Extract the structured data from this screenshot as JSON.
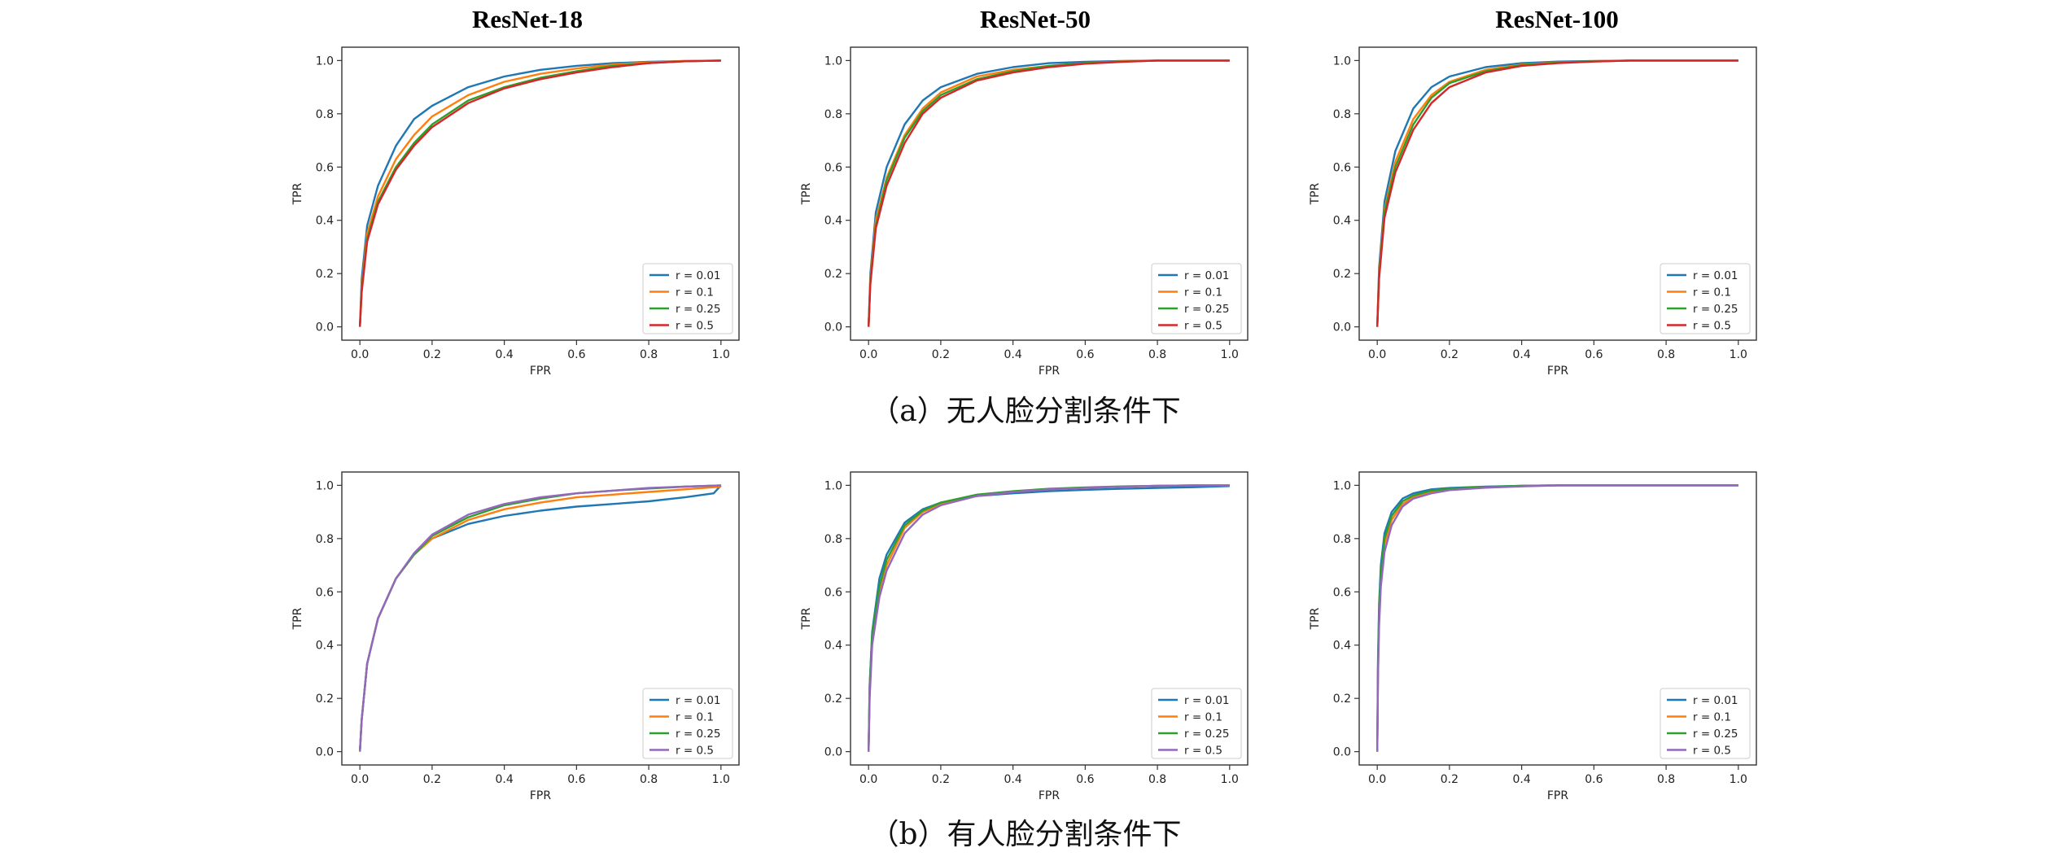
{
  "column_titles": [
    "ResNet-18",
    "ResNet-50",
    "ResNet-100"
  ],
  "captions": [
    "（a）无人脸分割条件下",
    "（b）有人脸分割条件下"
  ],
  "colors": {
    "a": [
      "#1f77b4",
      "#ff7f0e",
      "#2ca02c",
      "#d62728"
    ],
    "b": [
      "#1f77b4",
      "#ff7f0e",
      "#2ca02c",
      "#9467bd"
    ]
  },
  "chart_data": [
    {
      "type": "line",
      "panel": "a-resnet18",
      "xlabel": "FPR",
      "ylabel": "TPR",
      "xlim": [
        0,
        1
      ],
      "ylim": [
        0,
        1
      ],
      "xticks": [
        "0.0",
        "0.2",
        "0.4",
        "0.6",
        "0.8",
        "1.0"
      ],
      "yticks": [
        "0.0",
        "0.2",
        "0.4",
        "0.6",
        "0.8",
        "1.0"
      ],
      "legend_position": "lower right",
      "series": [
        {
          "name": "r = 0.01",
          "x": [
            0,
            0.005,
            0.02,
            0.05,
            0.1,
            0.15,
            0.2,
            0.3,
            0.4,
            0.5,
            0.6,
            0.7,
            0.8,
            0.9,
            1.0
          ],
          "y": [
            0,
            0.18,
            0.38,
            0.53,
            0.68,
            0.78,
            0.83,
            0.9,
            0.94,
            0.965,
            0.98,
            0.99,
            0.995,
            0.998,
            1.0
          ]
        },
        {
          "name": "r = 0.1",
          "x": [
            0,
            0.005,
            0.02,
            0.05,
            0.1,
            0.15,
            0.2,
            0.3,
            0.4,
            0.5,
            0.6,
            0.7,
            0.8,
            0.9,
            1.0
          ],
          "y": [
            0,
            0.15,
            0.35,
            0.49,
            0.63,
            0.72,
            0.79,
            0.87,
            0.92,
            0.95,
            0.97,
            0.985,
            0.993,
            0.998,
            1.0
          ]
        },
        {
          "name": "r = 0.25",
          "x": [
            0,
            0.005,
            0.02,
            0.05,
            0.1,
            0.15,
            0.2,
            0.3,
            0.4,
            0.5,
            0.6,
            0.7,
            0.8,
            0.9,
            1.0
          ],
          "y": [
            0,
            0.14,
            0.33,
            0.47,
            0.6,
            0.69,
            0.76,
            0.85,
            0.9,
            0.935,
            0.96,
            0.98,
            0.99,
            0.997,
            1.0
          ]
        },
        {
          "name": "r = 0.5",
          "x": [
            0,
            0.005,
            0.02,
            0.05,
            0.1,
            0.15,
            0.2,
            0.3,
            0.4,
            0.5,
            0.6,
            0.7,
            0.8,
            0.9,
            1.0
          ],
          "y": [
            0,
            0.13,
            0.32,
            0.46,
            0.59,
            0.68,
            0.75,
            0.84,
            0.895,
            0.93,
            0.955,
            0.975,
            0.99,
            0.997,
            1.0
          ]
        }
      ]
    },
    {
      "type": "line",
      "panel": "a-resnet50",
      "xlabel": "FPR",
      "ylabel": "TPR",
      "xlim": [
        0,
        1
      ],
      "ylim": [
        0,
        1
      ],
      "xticks": [
        "0.0",
        "0.2",
        "0.4",
        "0.6",
        "0.8",
        "1.0"
      ],
      "yticks": [
        "0.0",
        "0.2",
        "0.4",
        "0.6",
        "0.8",
        "1.0"
      ],
      "legend_position": "lower right",
      "series": [
        {
          "name": "r = 0.01",
          "x": [
            0,
            0.005,
            0.02,
            0.05,
            0.1,
            0.15,
            0.2,
            0.3,
            0.4,
            0.5,
            0.6,
            0.7,
            0.8,
            0.9,
            1.0
          ],
          "y": [
            0,
            0.2,
            0.43,
            0.6,
            0.76,
            0.85,
            0.9,
            0.95,
            0.975,
            0.99,
            0.995,
            0.998,
            1.0,
            1.0,
            1.0
          ]
        },
        {
          "name": "r = 0.1",
          "x": [
            0,
            0.005,
            0.02,
            0.05,
            0.1,
            0.15,
            0.2,
            0.3,
            0.4,
            0.5,
            0.6,
            0.7,
            0.8,
            0.9,
            1.0
          ],
          "y": [
            0,
            0.18,
            0.4,
            0.56,
            0.72,
            0.82,
            0.88,
            0.94,
            0.965,
            0.98,
            0.99,
            0.997,
            1.0,
            1.0,
            1.0
          ]
        },
        {
          "name": "r = 0.25",
          "x": [
            0,
            0.005,
            0.02,
            0.05,
            0.1,
            0.15,
            0.2,
            0.3,
            0.4,
            0.5,
            0.6,
            0.7,
            0.8,
            0.9,
            1.0
          ],
          "y": [
            0,
            0.17,
            0.38,
            0.55,
            0.71,
            0.81,
            0.87,
            0.93,
            0.96,
            0.98,
            0.99,
            0.996,
            1.0,
            1.0,
            1.0
          ]
        },
        {
          "name": "r = 0.5",
          "x": [
            0,
            0.005,
            0.02,
            0.05,
            0.1,
            0.15,
            0.2,
            0.3,
            0.4,
            0.5,
            0.6,
            0.7,
            0.8,
            0.9,
            1.0
          ],
          "y": [
            0,
            0.16,
            0.37,
            0.53,
            0.69,
            0.8,
            0.86,
            0.925,
            0.955,
            0.975,
            0.988,
            0.995,
            1.0,
            1.0,
            1.0
          ]
        }
      ]
    },
    {
      "type": "line",
      "panel": "a-resnet100",
      "xlabel": "FPR",
      "ylabel": "TPR",
      "xlim": [
        0,
        1
      ],
      "ylim": [
        0,
        1
      ],
      "xticks": [
        "0.0",
        "0.2",
        "0.4",
        "0.6",
        "0.8",
        "1.0"
      ],
      "yticks": [
        "0.0",
        "0.2",
        "0.4",
        "0.6",
        "0.8",
        "1.0"
      ],
      "legend_position": "lower right",
      "series": [
        {
          "name": "r = 0.01",
          "x": [
            0,
            0.005,
            0.02,
            0.05,
            0.1,
            0.15,
            0.2,
            0.3,
            0.4,
            0.5,
            0.6,
            0.7,
            0.8,
            0.9,
            1.0
          ],
          "y": [
            0,
            0.22,
            0.47,
            0.66,
            0.82,
            0.9,
            0.94,
            0.975,
            0.99,
            0.996,
            0.998,
            1.0,
            1.0,
            1.0,
            1.0
          ]
        },
        {
          "name": "r = 0.1",
          "x": [
            0,
            0.005,
            0.02,
            0.05,
            0.1,
            0.15,
            0.2,
            0.3,
            0.4,
            0.5,
            0.6,
            0.7,
            0.8,
            0.9,
            1.0
          ],
          "y": [
            0,
            0.2,
            0.44,
            0.62,
            0.78,
            0.87,
            0.92,
            0.965,
            0.985,
            0.993,
            0.997,
            1.0,
            1.0,
            1.0,
            1.0
          ]
        },
        {
          "name": "r = 0.25",
          "x": [
            0,
            0.005,
            0.02,
            0.05,
            0.1,
            0.15,
            0.2,
            0.3,
            0.4,
            0.5,
            0.6,
            0.7,
            0.8,
            0.9,
            1.0
          ],
          "y": [
            0,
            0.19,
            0.43,
            0.6,
            0.76,
            0.86,
            0.915,
            0.96,
            0.983,
            0.992,
            0.997,
            1.0,
            1.0,
            1.0,
            1.0
          ]
        },
        {
          "name": "r = 0.5",
          "x": [
            0,
            0.005,
            0.02,
            0.05,
            0.1,
            0.15,
            0.2,
            0.3,
            0.4,
            0.5,
            0.6,
            0.7,
            0.8,
            0.9,
            1.0
          ],
          "y": [
            0,
            0.18,
            0.41,
            0.58,
            0.74,
            0.84,
            0.9,
            0.955,
            0.98,
            0.99,
            0.996,
            1.0,
            1.0,
            1.0,
            1.0
          ]
        }
      ]
    },
    {
      "type": "line",
      "panel": "b-resnet18",
      "xlabel": "FPR",
      "ylabel": "TPR",
      "xlim": [
        0,
        1
      ],
      "ylim": [
        0,
        1
      ],
      "xticks": [
        "0.0",
        "0.2",
        "0.4",
        "0.6",
        "0.8",
        "1.0"
      ],
      "yticks": [
        "0.0",
        "0.2",
        "0.4",
        "0.6",
        "0.8",
        "1.0"
      ],
      "legend_position": "lower right",
      "series": [
        {
          "name": "r = 0.01",
          "x": [
            0,
            0.005,
            0.02,
            0.05,
            0.1,
            0.15,
            0.2,
            0.3,
            0.4,
            0.5,
            0.6,
            0.7,
            0.8,
            0.9,
            0.98,
            1.0
          ],
          "y": [
            0,
            0.12,
            0.33,
            0.5,
            0.65,
            0.74,
            0.8,
            0.855,
            0.885,
            0.905,
            0.92,
            0.93,
            0.94,
            0.955,
            0.97,
            1.0
          ]
        },
        {
          "name": "r = 0.1",
          "x": [
            0,
            0.005,
            0.02,
            0.05,
            0.1,
            0.15,
            0.2,
            0.3,
            0.4,
            0.5,
            0.6,
            0.7,
            0.8,
            0.9,
            1.0
          ],
          "y": [
            0,
            0.12,
            0.33,
            0.5,
            0.65,
            0.74,
            0.8,
            0.87,
            0.91,
            0.935,
            0.955,
            0.965,
            0.975,
            0.985,
            0.995
          ]
        },
        {
          "name": "r = 0.25",
          "x": [
            0,
            0.005,
            0.02,
            0.05,
            0.1,
            0.15,
            0.2,
            0.3,
            0.4,
            0.5,
            0.6,
            0.7,
            0.8,
            0.9,
            1.0
          ],
          "y": [
            0,
            0.12,
            0.33,
            0.5,
            0.65,
            0.74,
            0.81,
            0.88,
            0.925,
            0.95,
            0.97,
            0.98,
            0.988,
            0.995,
            1.0
          ]
        },
        {
          "name": "r = 0.5",
          "x": [
            0,
            0.005,
            0.02,
            0.05,
            0.1,
            0.15,
            0.2,
            0.3,
            0.4,
            0.5,
            0.6,
            0.7,
            0.8,
            0.9,
            1.0
          ],
          "y": [
            0,
            0.12,
            0.33,
            0.5,
            0.65,
            0.745,
            0.815,
            0.89,
            0.93,
            0.955,
            0.97,
            0.98,
            0.99,
            0.995,
            1.0
          ]
        }
      ]
    },
    {
      "type": "line",
      "panel": "b-resnet50",
      "xlabel": "FPR",
      "ylabel": "TPR",
      "xlim": [
        0,
        1
      ],
      "ylim": [
        0,
        1
      ],
      "xticks": [
        "0.0",
        "0.2",
        "0.4",
        "0.6",
        "0.8",
        "1.0"
      ],
      "yticks": [
        "0.0",
        "0.2",
        "0.4",
        "0.6",
        "0.8",
        "1.0"
      ],
      "legend_position": "lower right",
      "series": [
        {
          "name": "r = 0.01",
          "x": [
            0,
            0.003,
            0.01,
            0.03,
            0.05,
            0.1,
            0.15,
            0.2,
            0.3,
            0.4,
            0.5,
            0.6,
            0.7,
            0.8,
            0.9,
            1.0
          ],
          "y": [
            0,
            0.25,
            0.45,
            0.65,
            0.74,
            0.86,
            0.91,
            0.935,
            0.96,
            0.97,
            0.978,
            0.983,
            0.987,
            0.99,
            0.993,
            0.997
          ]
        },
        {
          "name": "r = 0.1",
          "x": [
            0,
            0.003,
            0.01,
            0.03,
            0.05,
            0.1,
            0.15,
            0.2,
            0.3,
            0.4,
            0.5,
            0.6,
            0.7,
            0.8,
            0.9,
            1.0
          ],
          "y": [
            0,
            0.22,
            0.42,
            0.6,
            0.7,
            0.84,
            0.9,
            0.93,
            0.96,
            0.975,
            0.985,
            0.99,
            0.995,
            0.998,
            1.0,
            1.0
          ]
        },
        {
          "name": "r = 0.25",
          "x": [
            0,
            0.003,
            0.01,
            0.03,
            0.05,
            0.1,
            0.15,
            0.2,
            0.3,
            0.4,
            0.5,
            0.6,
            0.7,
            0.8,
            0.9,
            1.0
          ],
          "y": [
            0,
            0.24,
            0.44,
            0.62,
            0.72,
            0.85,
            0.905,
            0.935,
            0.965,
            0.978,
            0.987,
            0.992,
            0.996,
            0.998,
            1.0,
            1.0
          ]
        },
        {
          "name": "r = 0.5",
          "x": [
            0,
            0.003,
            0.01,
            0.03,
            0.05,
            0.1,
            0.15,
            0.2,
            0.3,
            0.4,
            0.5,
            0.6,
            0.7,
            0.8,
            0.9,
            1.0
          ],
          "y": [
            0,
            0.2,
            0.4,
            0.58,
            0.68,
            0.82,
            0.89,
            0.925,
            0.96,
            0.975,
            0.985,
            0.99,
            0.995,
            0.998,
            1.0,
            1.0
          ]
        }
      ]
    },
    {
      "type": "line",
      "panel": "b-resnet100",
      "xlabel": "FPR",
      "ylabel": "TPR",
      "xlim": [
        0,
        1
      ],
      "ylim": [
        0,
        1
      ],
      "xticks": [
        "0.0",
        "0.2",
        "0.4",
        "0.6",
        "0.8",
        "1.0"
      ],
      "yticks": [
        "0.0",
        "0.2",
        "0.4",
        "0.6",
        "0.8",
        "1.0"
      ],
      "legend_position": "lower right",
      "series": [
        {
          "name": "r = 0.01",
          "x": [
            0,
            0.002,
            0.005,
            0.01,
            0.02,
            0.04,
            0.07,
            0.1,
            0.15,
            0.2,
            0.3,
            0.4,
            0.5,
            0.6,
            0.8,
            1.0
          ],
          "y": [
            0,
            0.35,
            0.55,
            0.7,
            0.82,
            0.9,
            0.95,
            0.97,
            0.985,
            0.99,
            0.995,
            0.998,
            1.0,
            1.0,
            1.0,
            1.0
          ]
        },
        {
          "name": "r = 0.1",
          "x": [
            0,
            0.002,
            0.005,
            0.01,
            0.02,
            0.04,
            0.07,
            0.1,
            0.15,
            0.2,
            0.3,
            0.4,
            0.5,
            0.6,
            0.8,
            1.0
          ],
          "y": [
            0,
            0.3,
            0.5,
            0.65,
            0.78,
            0.87,
            0.93,
            0.955,
            0.975,
            0.985,
            0.993,
            0.997,
            1.0,
            1.0,
            1.0,
            1.0
          ]
        },
        {
          "name": "r = 0.25",
          "x": [
            0,
            0.002,
            0.005,
            0.01,
            0.02,
            0.04,
            0.07,
            0.1,
            0.15,
            0.2,
            0.3,
            0.4,
            0.5,
            0.6,
            0.8,
            1.0
          ],
          "y": [
            0,
            0.32,
            0.52,
            0.67,
            0.8,
            0.885,
            0.94,
            0.962,
            0.98,
            0.988,
            0.994,
            0.998,
            1.0,
            1.0,
            1.0,
            1.0
          ]
        },
        {
          "name": "r = 0.5",
          "x": [
            0,
            0.002,
            0.005,
            0.01,
            0.02,
            0.04,
            0.07,
            0.1,
            0.15,
            0.2,
            0.3,
            0.4,
            0.5,
            0.6,
            0.8,
            1.0
          ],
          "y": [
            0,
            0.28,
            0.47,
            0.62,
            0.75,
            0.85,
            0.92,
            0.95,
            0.97,
            0.982,
            0.991,
            0.996,
            1.0,
            1.0,
            1.0,
            1.0
          ]
        }
      ]
    }
  ]
}
